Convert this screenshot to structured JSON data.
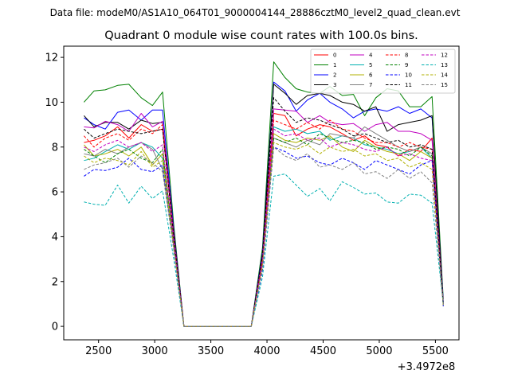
{
  "header": {
    "data_file": "Data file: modeM0/AS1A10_064T01_9000004144_28886cztM0_level2_quad_clean.evt"
  },
  "chart_data": {
    "type": "line",
    "title": "Quadrant 0 module wise count rates with 100.0s bins.",
    "xlabel": "",
    "ylabel": "",
    "x_offset_label": "+3.4972e8",
    "xlim": [
      2190,
      5710
    ],
    "ylim": [
      -0.6,
      12.5
    ],
    "x_ticks": [
      2500,
      3000,
      3500,
      4000,
      4500,
      5000,
      5500
    ],
    "y_ticks": [
      0,
      2,
      4,
      6,
      8,
      10,
      12
    ],
    "grid": false,
    "legend_position": "top-right",
    "x": [
      2370,
      2460,
      2560,
      2670,
      2770,
      2880,
      2980,
      3070,
      3170,
      3260,
      3370,
      3460,
      3560,
      3670,
      3770,
      3860,
      3960,
      4060,
      4160,
      4260,
      4360,
      4470,
      4560,
      4670,
      4770,
      4870,
      4970,
      5070,
      5170,
      5270,
      5370,
      5470,
      5570
    ],
    "series": [
      {
        "name": "0",
        "color": "#ff0000",
        "dash": false,
        "values": [
          8.2,
          8.3,
          8.5,
          8.9,
          8.4,
          9.0,
          8.7,
          8.8,
          4.0,
          0.0,
          0.0,
          0.0,
          0.0,
          0.0,
          0.0,
          0.0,
          3.0,
          9.5,
          9.4,
          8.5,
          8.8,
          9.0,
          8.9,
          8.6,
          8.3,
          8.5,
          8.1,
          8.0,
          7.6,
          7.9,
          7.8,
          8.4,
          1.0
        ]
      },
      {
        "name": "1",
        "color": "#008000",
        "dash": false,
        "values": [
          10.0,
          10.5,
          10.55,
          10.75,
          10.8,
          10.2,
          9.85,
          10.45,
          4.5,
          0.0,
          0.0,
          0.0,
          0.0,
          0.0,
          0.0,
          0.0,
          3.5,
          11.8,
          11.1,
          10.6,
          10.45,
          10.4,
          10.7,
          10.3,
          10.35,
          9.4,
          10.2,
          10.6,
          10.5,
          9.8,
          9.8,
          10.25,
          1.2
        ]
      },
      {
        "name": "2",
        "color": "#0000ff",
        "dash": false,
        "values": [
          9.3,
          9.0,
          8.8,
          9.55,
          9.65,
          9.2,
          9.65,
          9.65,
          4.3,
          0.0,
          0.0,
          0.0,
          0.0,
          0.0,
          0.0,
          0.0,
          3.3,
          10.9,
          10.5,
          9.6,
          10.1,
          10.4,
          10.0,
          9.7,
          9.3,
          9.6,
          9.7,
          9.6,
          9.8,
          9.5,
          9.7,
          9.3,
          1.1
        ]
      },
      {
        "name": "3",
        "color": "#000000",
        "dash": false,
        "values": [
          9.4,
          8.9,
          9.1,
          9.1,
          8.8,
          9.2,
          9.05,
          9.1,
          4.2,
          0.0,
          0.0,
          0.0,
          0.0,
          0.0,
          0.0,
          0.0,
          3.2,
          10.8,
          10.4,
          9.9,
          10.3,
          10.4,
          10.3,
          10.0,
          9.9,
          9.6,
          9.8,
          8.7,
          9.0,
          9.1,
          9.2,
          9.4,
          1.0
        ]
      },
      {
        "name": "4",
        "color": "#c000c0",
        "dash": false,
        "values": [
          8.9,
          8.85,
          9.15,
          9.0,
          8.7,
          9.5,
          8.9,
          9.15,
          4.1,
          0.0,
          0.0,
          0.0,
          0.0,
          0.0,
          0.0,
          0.0,
          3.1,
          9.7,
          9.65,
          9.6,
          9.1,
          9.4,
          9.1,
          9.0,
          9.05,
          8.7,
          9.0,
          9.1,
          8.7,
          8.7,
          8.6,
          8.3,
          1.0
        ]
      },
      {
        "name": "5",
        "color": "#00b0b0",
        "dash": false,
        "values": [
          7.4,
          7.5,
          7.8,
          8.1,
          7.9,
          8.2,
          8.0,
          7.5,
          3.8,
          0.0,
          0.0,
          0.0,
          0.0,
          0.0,
          0.0,
          0.0,
          2.9,
          8.9,
          8.7,
          8.8,
          8.6,
          8.7,
          8.3,
          8.5,
          8.4,
          8.1,
          8.0,
          7.9,
          7.7,
          7.8,
          8.0,
          7.5,
          1.0
        ]
      },
      {
        "name": "6",
        "color": "#b0b000",
        "dash": false,
        "values": [
          8.1,
          7.6,
          7.7,
          7.9,
          7.6,
          8.0,
          7.2,
          7.7,
          3.7,
          0.0,
          0.0,
          0.0,
          0.0,
          0.0,
          0.0,
          0.0,
          2.8,
          8.6,
          8.3,
          8.2,
          8.4,
          8.3,
          8.5,
          8.0,
          7.8,
          8.3,
          8.0,
          7.8,
          7.7,
          7.4,
          7.8,
          7.5,
          0.9
        ]
      },
      {
        "name": "7",
        "color": "#808080",
        "dash": false,
        "values": [
          7.7,
          7.6,
          7.9,
          7.7,
          8.0,
          8.2,
          7.9,
          7.0,
          3.6,
          0.0,
          0.0,
          0.0,
          0.0,
          0.0,
          0.0,
          0.0,
          2.8,
          8.4,
          8.2,
          8.0,
          8.3,
          8.1,
          8.6,
          8.5,
          8.4,
          8.9,
          8.6,
          8.3,
          8.0,
          7.8,
          8.0,
          7.7,
          1.0
        ]
      },
      {
        "name": "8",
        "color": "#ff0000",
        "dash": true,
        "values": [
          8.5,
          8.0,
          8.4,
          8.6,
          8.3,
          8.8,
          8.6,
          9.0,
          4.0,
          0.0,
          0.0,
          0.0,
          0.0,
          0.0,
          0.0,
          0.0,
          3.0,
          9.2,
          9.0,
          8.8,
          9.1,
          8.8,
          9.2,
          8.8,
          8.7,
          8.4,
          8.2,
          8.2,
          8.0,
          8.2,
          8.0,
          7.9,
          1.0
        ]
      },
      {
        "name": "9",
        "color": "#008000",
        "dash": true,
        "values": [
          7.9,
          7.6,
          7.3,
          7.7,
          7.9,
          7.5,
          7.3,
          7.9,
          3.6,
          0.0,
          0.0,
          0.0,
          0.0,
          0.0,
          0.0,
          0.0,
          2.7,
          8.4,
          8.2,
          8.4,
          8.1,
          8.6,
          8.4,
          8.2,
          8.3,
          8.2,
          7.9,
          8.0,
          7.9,
          7.6,
          8.0,
          7.6,
          1.0
        ]
      },
      {
        "name": "10",
        "color": "#0000ff",
        "dash": true,
        "values": [
          6.7,
          7.0,
          6.95,
          7.1,
          7.5,
          7.0,
          6.9,
          7.2,
          3.4,
          0.0,
          0.0,
          0.0,
          0.0,
          0.0,
          0.0,
          0.0,
          2.5,
          8.0,
          7.8,
          7.5,
          7.6,
          7.3,
          7.2,
          7.5,
          7.3,
          7.0,
          7.4,
          7.2,
          7.0,
          6.8,
          7.2,
          7.4,
          0.9
        ]
      },
      {
        "name": "11",
        "color": "#000000",
        "dash": true,
        "values": [
          8.8,
          8.4,
          8.6,
          8.8,
          8.7,
          8.6,
          8.7,
          8.8,
          4.0,
          0.0,
          0.0,
          0.0,
          0.0,
          0.0,
          0.0,
          0.0,
          3.2,
          10.2,
          9.6,
          9.1,
          9.3,
          9.2,
          9.0,
          8.8,
          8.5,
          8.6,
          8.4,
          8.2,
          8.3,
          8.0,
          8.1,
          7.9,
          1.0
        ]
      },
      {
        "name": "12",
        "color": "#c000c0",
        "dash": true,
        "values": [
          8.0,
          7.8,
          8.1,
          8.3,
          8.0,
          8.2,
          7.8,
          8.1,
          3.7,
          0.0,
          0.0,
          0.0,
          0.0,
          0.0,
          0.0,
          0.0,
          2.9,
          8.8,
          8.5,
          8.6,
          8.3,
          8.4,
          8.0,
          8.2,
          8.1,
          7.9,
          7.8,
          8.0,
          7.6,
          7.7,
          7.5,
          7.4,
          1.0
        ]
      },
      {
        "name": "13",
        "color": "#00b0b0",
        "dash": true,
        "values": [
          5.55,
          5.45,
          5.4,
          6.3,
          5.5,
          6.25,
          5.7,
          6.05,
          3.0,
          0.0,
          0.0,
          0.0,
          0.0,
          0.0,
          0.0,
          0.0,
          2.2,
          6.7,
          6.8,
          6.3,
          5.8,
          6.15,
          5.6,
          6.45,
          6.2,
          5.9,
          5.95,
          5.55,
          5.5,
          5.9,
          5.85,
          5.5,
          1.0
        ]
      },
      {
        "name": "14",
        "color": "#b0b000",
        "dash": true,
        "values": [
          7.6,
          7.3,
          7.5,
          7.4,
          7.2,
          7.8,
          7.1,
          7.4,
          3.5,
          0.0,
          0.0,
          0.0,
          0.0,
          0.0,
          0.0,
          0.0,
          2.7,
          8.2,
          8.0,
          7.9,
          8.1,
          7.7,
          8.0,
          7.8,
          7.9,
          7.6,
          7.7,
          7.4,
          7.5,
          7.1,
          7.3,
          7.0,
          0.9
        ]
      },
      {
        "name": "15",
        "color": "#808080",
        "dash": true,
        "values": [
          7.0,
          7.2,
          7.3,
          7.5,
          7.1,
          7.6,
          7.3,
          6.9,
          3.4,
          0.0,
          0.0,
          0.0,
          0.0,
          0.0,
          0.0,
          0.0,
          2.6,
          8.0,
          7.6,
          7.4,
          7.7,
          7.1,
          7.2,
          7.0,
          7.3,
          6.8,
          6.9,
          6.6,
          7.0,
          6.6,
          6.9,
          6.4,
          1.0
        ]
      }
    ]
  }
}
